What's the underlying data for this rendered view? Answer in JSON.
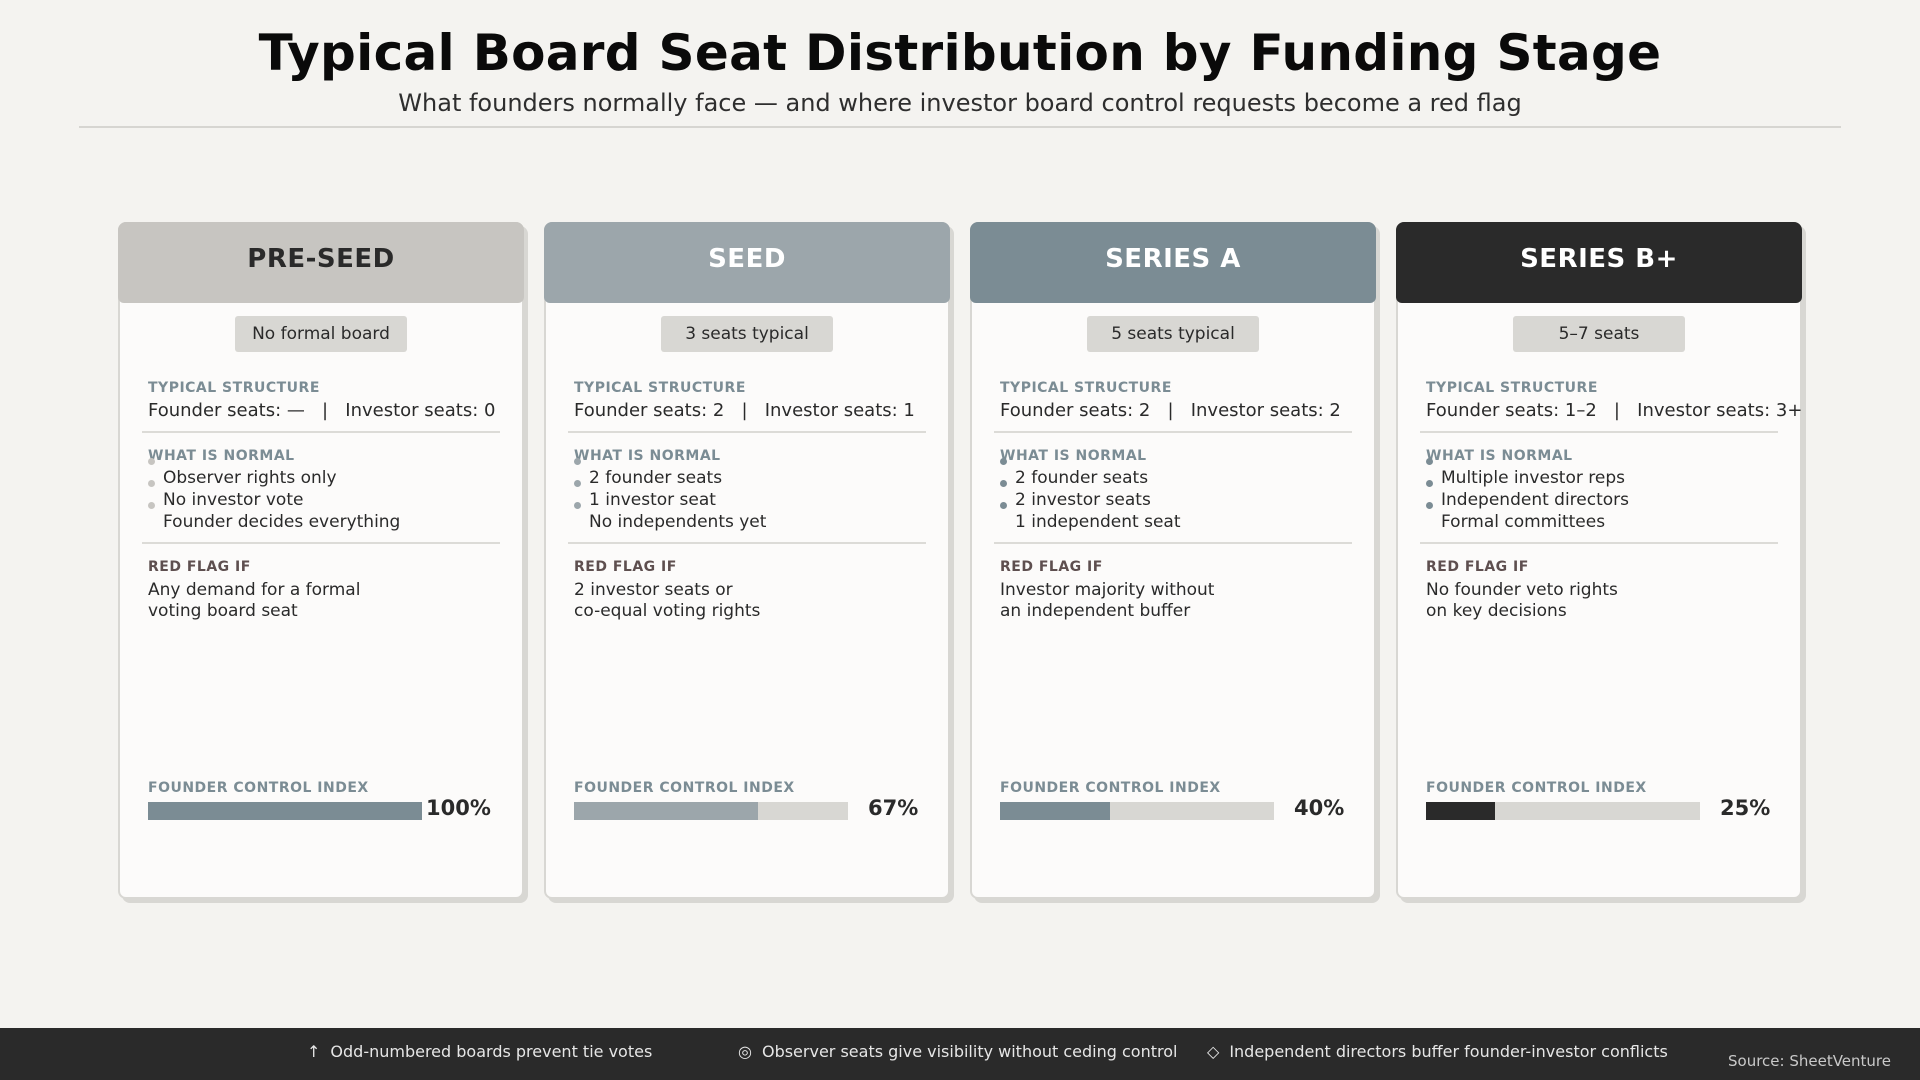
{
  "header": {
    "title": "Typical Board Seat Distribution by Funding Stage",
    "subtitle": "What founders normally face — and where investor board control requests become a red flag"
  },
  "labels": {
    "typical_structure": "TYPICAL STRUCTURE",
    "what_is_normal": "WHAT IS NORMAL",
    "red_flag_if": "RED FLAG IF",
    "founder_control_index": "FOUNDER CONTROL INDEX"
  },
  "stages": [
    {
      "name": "PRE-SEED",
      "header_bg": "#c7c5c1",
      "header_fg": "#2a2a2a",
      "badge": "No formal board",
      "structure": "Founder seats: —   |   Investor seats: 0",
      "normal": [
        "Observer rights only",
        "No investor vote",
        "Founder decides everything"
      ],
      "bullet_color": "#c7c5c1",
      "red_flag": "Any demand for a formal\nvoting board seat",
      "control_index": 100,
      "control_label": "100%",
      "bar_color": "#7b8c94"
    },
    {
      "name": "SEED",
      "header_bg": "#9ca6ab",
      "header_fg": "#ffffff",
      "badge": "3 seats typical",
      "structure": "Founder seats: 2   |   Investor seats: 1",
      "normal": [
        "2 founder seats",
        "1 investor seat",
        "No independents yet"
      ],
      "bullet_color": "#9ca6ab",
      "red_flag": "2 investor seats or\nco-equal voting rights",
      "control_index": 67,
      "control_label": "67%",
      "bar_color": "#9ca6ab"
    },
    {
      "name": "SERIES A",
      "header_bg": "#7b8c94",
      "header_fg": "#ffffff",
      "badge": "5 seats typical",
      "structure": "Founder seats: 2   |   Investor seats: 2",
      "normal": [
        "2 founder seats",
        "2 investor seats",
        "1 independent seat"
      ],
      "bullet_color": "#7b8c94",
      "red_flag": "Investor majority without\nan independent buffer",
      "control_index": 40,
      "control_label": "40%",
      "bar_color": "#7b8c94"
    },
    {
      "name": "SERIES B+",
      "header_bg": "#2a2a2a",
      "header_fg": "#ffffff",
      "badge": "5–7 seats",
      "structure": "Founder seats: 1–2   |   Investor seats: 3+",
      "normal": [
        "Multiple investor reps",
        "Independent directors",
        "Formal committees"
      ],
      "bullet_color": "#7b8c94",
      "red_flag": "No founder veto rights\non key decisions",
      "control_index": 25,
      "control_label": "25%",
      "bar_color": "#2a2a2a"
    }
  ],
  "footer": {
    "notes": [
      {
        "icon": "arrow-up-icon",
        "glyph": "↑",
        "text": "Odd-numbered boards prevent tie votes"
      },
      {
        "icon": "target-icon",
        "glyph": "◎",
        "text": "Observer seats give visibility without ceding control"
      },
      {
        "icon": "diamond-icon",
        "glyph": "◇",
        "text": "Independent directors buffer founder-investor conflicts"
      }
    ],
    "source": "Source: SheetVenture"
  },
  "chart_data": {
    "type": "bar",
    "title": "Typical Board Seat Distribution by Funding Stage",
    "subtitle": "What founders normally face — and where investor board control requests become a red flag",
    "categories": [
      "PRE-SEED",
      "SEED",
      "SERIES A",
      "SERIES B+"
    ],
    "series": [
      {
        "name": "Founder Control Index (%)",
        "values": [
          100,
          67,
          40,
          25
        ]
      }
    ],
    "ylim": [
      0,
      100
    ],
    "xlabel": "",
    "ylabel": "Founder Control Index"
  }
}
